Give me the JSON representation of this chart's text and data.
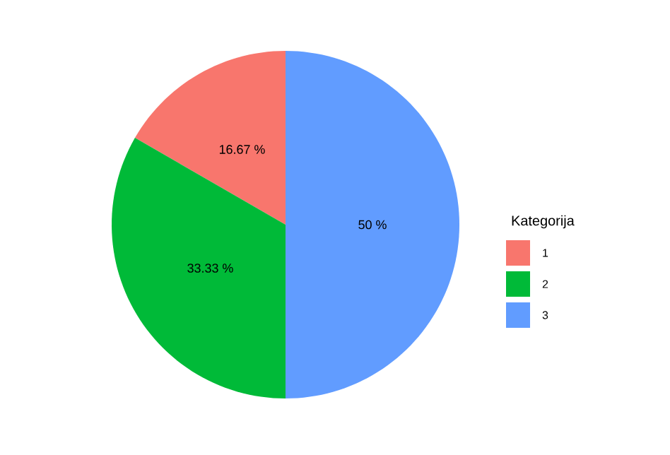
{
  "chart_data": {
    "type": "pie",
    "legend_title": "Kategorija",
    "categories": [
      "1",
      "2",
      "3"
    ],
    "values": [
      16.67,
      33.33,
      50
    ],
    "colors": [
      "#F8766D",
      "#00BA38",
      "#619CFF"
    ],
    "value_labels": [
      "16.67 %",
      "33.33 %",
      "50 %"
    ],
    "legend": "right"
  }
}
